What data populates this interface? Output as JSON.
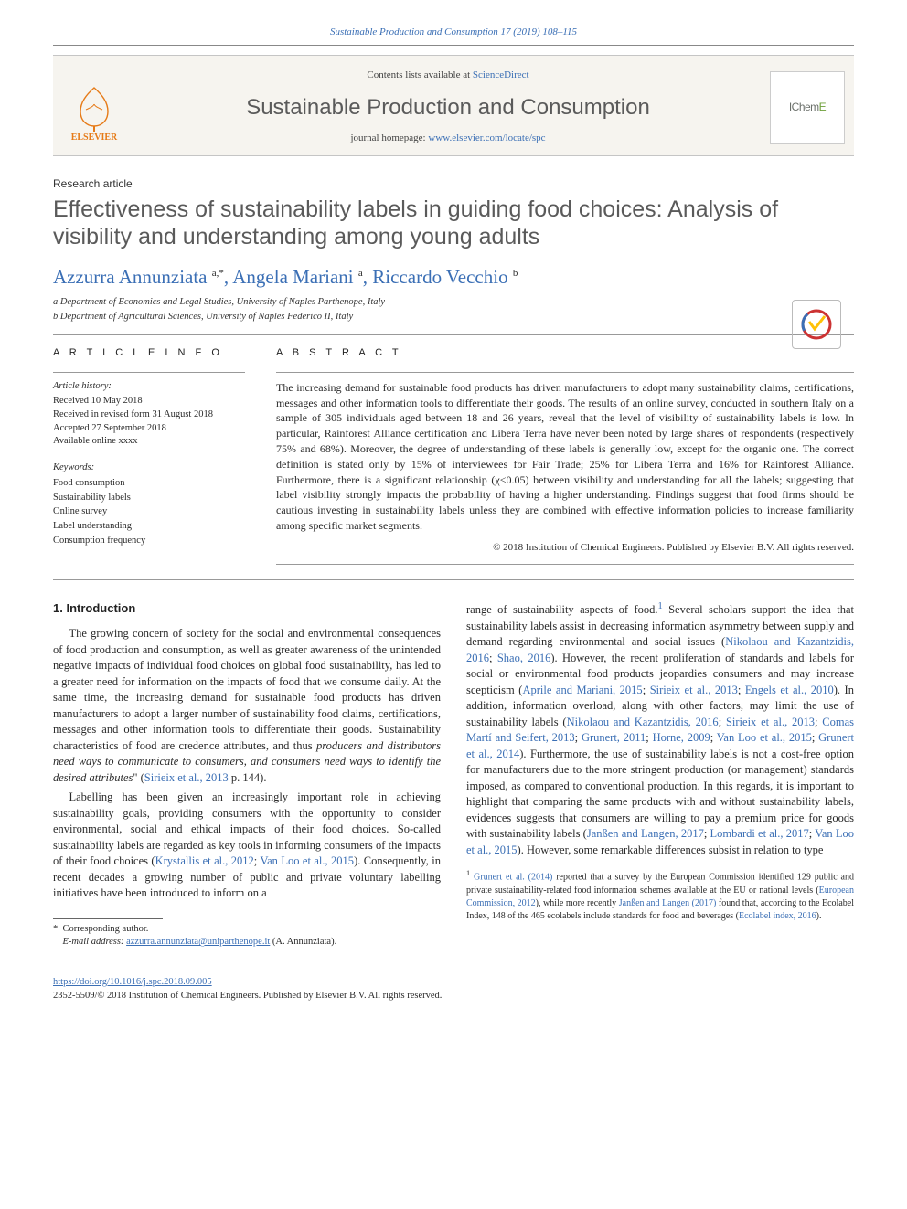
{
  "running_header": "Sustainable Production and Consumption 17 (2019) 108–115",
  "masthead": {
    "contents_prefix": "Contents lists available at ",
    "contents_link": "ScienceDirect",
    "journal_name": "Sustainable Production and Consumption",
    "homepage_prefix": "journal homepage: ",
    "homepage_link": "www.elsevier.com/locate/spc",
    "publisher_logo_text_1": "IChem",
    "publisher_logo_text_2": "E",
    "elsevier_label": "ELSEVIER"
  },
  "article_type": "Research article",
  "title": "Effectiveness of sustainability labels in guiding food choices: Analysis of visibility and understanding among young adults",
  "authors_html": "Azzurra Annunziata <sup>a,*</sup>, Angela Mariani <sup>a</sup>, Riccardo Vecchio <sup>b</sup>",
  "affiliations": [
    "a Department of Economics and Legal Studies, University of Naples Parthenope, Italy",
    "b Department of Agricultural Sciences, University of Naples Federico II, Italy"
  ],
  "article_info": {
    "label": "A R T I C L E   I N F O",
    "history_label": "Article history:",
    "history": [
      "Received 10 May 2018",
      "Received in revised form 31 August 2018",
      "Accepted 27 September 2018",
      "Available online  xxxx"
    ],
    "keywords_label": "Keywords:",
    "keywords": [
      "Food consumption",
      "Sustainability labels",
      "Online survey",
      "Label understanding",
      "Consumption frequency"
    ]
  },
  "abstract": {
    "label": "A B S T R A C T",
    "text": "The increasing demand for sustainable food products has driven manufacturers to adopt many sustainability claims, certifications, messages and other information tools to differentiate their goods. The results of an online survey, conducted in southern Italy on a sample of 305 individuals aged between 18 and 26 years, reveal that the level of visibility of sustainability labels is low. In particular, Rainforest Alliance certification and Libera Terra have never been noted by large shares of respondents (respectively 75% and 68%). Moreover, the degree of understanding of these labels is generally low, except for the organic one. The correct definition is stated only by 15% of interviewees for Fair Trade; 25% for Libera Terra and 16% for Rainforest Alliance. Furthermore, there is a significant relationship (χ<0.05) between visibility and understanding for all the labels; suggesting that label visibility strongly impacts the probability of having a higher understanding. Findings suggest that food firms should be cautious investing in sustainability labels unless they are combined with effective information policies to increase familiarity among specific market segments.",
    "copyright": "© 2018 Institution of Chemical Engineers. Published by Elsevier B.V. All rights reserved."
  },
  "body": {
    "heading": "1. Introduction",
    "p1": "The growing concern of society for the social and environmental consequences of food production and consumption, as well as greater awareness of the unintended negative impacts of individual food choices on global food sustainability, has led to a greater need for information on the impacts of food that we consume daily. At the same time, the increasing demand for sustainable food products has driven manufacturers to adopt a larger number of sustainability food claims, certifications, messages and other information tools to differentiate their goods. Sustainability characteristics of food are credence attributes, and thus ",
    "p1_ital": "producers and distributors need ways to communicate to consumers, and consumers need ways to identify the desired attributes",
    "p1_end": "\" (",
    "p1_cite": "Sirieix et al., 2013",
    "p1_tail": " p. 144).",
    "p2a": "Labelling has been given an increasingly important role in achieving sustainability goals, providing consumers with the opportunity to consider environmental, social and ethical impacts of their food choices. So-called sustainability labels are regarded as key tools in informing consumers of the impacts of their food choices (",
    "p2_cite1": "Krystallis et al., 2012",
    "p2_sep1": "; ",
    "p2_cite2": "Van Loo et al., 2015",
    "p2b": "). Consequently, in recent decades a growing number of public and private voluntary labelling initiatives have been introduced to inform on a",
    "p3a": "range of sustainability aspects of food.",
    "p3_fn": "1",
    "p3b": " Several scholars support the idea that sustainability labels assist in decreasing information asymmetry between supply and demand regarding environmental and social issues (",
    "p3_cite1": "Nikolaou and Kazantzidis, 2016",
    "p3_sep1": "; ",
    "p3_cite2": "Shao, 2016",
    "p3c": "). However, the recent proliferation of standards and labels for social or environmental food products jeopardies consumers and may increase scepticism (",
    "p3_cite3": "Aprile and Mariani, 2015",
    "p3_sep2": "; ",
    "p3_cite4": "Sirieix et al., 2013",
    "p3_sep3": "; ",
    "p3_cite5": "Engels et al., 2010",
    "p3d": "). In addition, information overload, along with other factors, may limit the use of sustainability  labels (",
    "p3_cite6": "Nikolaou and Kazantzidis, 2016",
    "p3_sep4": "; ",
    "p3_cite7": "Sirieix et al., 2013",
    "p3_sep5": "; ",
    "p3_cite8": "Comas Martí and Seifert, 2013",
    "p3_sep6": "; ",
    "p3_cite9": "Grunert, 2011",
    "p3_sep7": "; ",
    "p3_cite10": "Horne, 2009",
    "p3_sep8": "; ",
    "p3_cite11": "Van Loo et al., 2015",
    "p3_sep9": "; ",
    "p3_cite12": "Grunert et al., 2014",
    "p3e": "). Furthermore, the use of sustainability labels is not a cost-free option for manufacturers due to the more stringent production (or management) standards imposed, as compared to conventional production. In this regards, it is important to highlight that comparing the same products with and without sustainability labels, evidences suggests that consumers are willing to pay a premium price for goods with sustainability labels (",
    "p3_cite13": "Janßen and Langen, 2017",
    "p3_sep10": "; ",
    "p3_cite14": "Lombardi et al., 2017",
    "p3_sep11": "; ",
    "p3_cite15": "Van Loo et al., 2015",
    "p3f": "). However, some remarkable differences subsist in relation to type"
  },
  "footnote": {
    "marker": "1",
    "t1": "Grunert et al. (2014)",
    "t2": " reported that a survey by the European Commission identified 129 public and private sustainability-related food information schemes available at the EU or national levels (",
    "c1": "European Commission, 2012",
    "t3": "), while more recently ",
    "c2": "Janßen and Langen (2017)",
    "t4": " found that, according to the Ecolabel Index, 148 of the 465 ecolabels include standards for food and beverages (",
    "c3": "Ecolabel index, 2016",
    "t5": ")."
  },
  "corresponding": {
    "star": "*",
    "label": "Corresponding author.",
    "email_label": "E-mail address:",
    "email": "azzurra.annunziata@uniparthenope.it",
    "email_who": "(A. Annunziata)."
  },
  "bottom": {
    "doi": "https://doi.org/10.1016/j.spc.2018.09.005",
    "issn_line": "2352-5509/© 2018 Institution of Chemical Engineers.  Published by Elsevier B.V. All rights reserved."
  },
  "colors": {
    "link": "#3b6fb5",
    "accent_orange": "#e67a17",
    "masthead_bg": "#f6f4ef",
    "text": "#2a2a2a"
  }
}
